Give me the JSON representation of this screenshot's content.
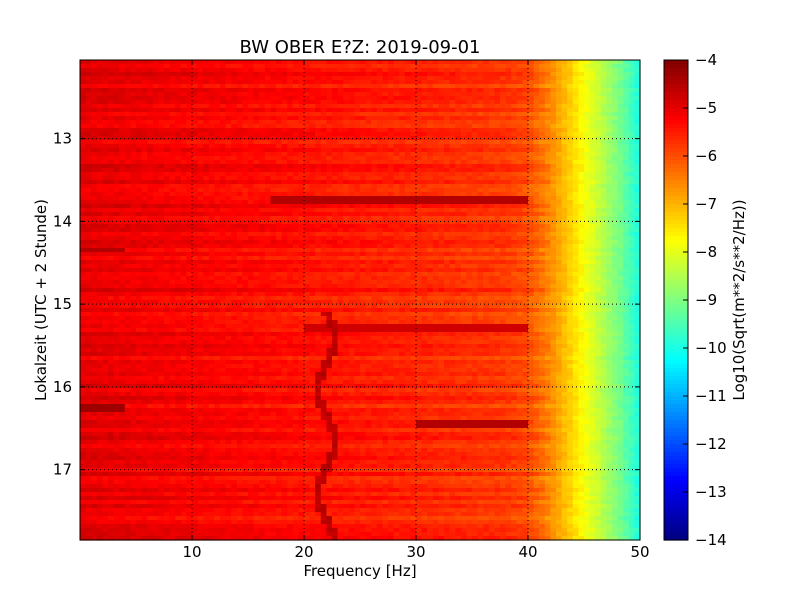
{
  "chart_data": {
    "type": "heatmap",
    "title": "BW OBER E?Z: 2019-09-01",
    "xlabel": "Frequency [Hz]",
    "ylabel": "Lokalzeit (UTC + 2 Stunde)",
    "colorbar_label": "Log10(Sqrt(m**2/s**2/Hz))",
    "colormap": "jet",
    "xlim": [
      0,
      50
    ],
    "ylim": [
      17.85,
      12.05
    ],
    "clim": [
      -14,
      -4
    ],
    "x_ticks": [
      10,
      20,
      30,
      40,
      50
    ],
    "x_tick_labels": [
      "10",
      "20",
      "30",
      "40",
      "50"
    ],
    "y_ticks": [
      13,
      14,
      15,
      16,
      17
    ],
    "y_tick_labels": [
      "13",
      "14",
      "15",
      "16",
      "17"
    ],
    "colorbar_ticks": [
      -4,
      -5,
      -6,
      -7,
      -8,
      -9,
      -10,
      -11,
      -12,
      -13,
      -14
    ],
    "colorbar_tick_labels": [
      "−4",
      "−5",
      "−6",
      "−7",
      "−8",
      "−9",
      "−10",
      "−11",
      "−12",
      "−13",
      "−14"
    ],
    "grid": true,
    "frequency_profile": {
      "frequency_hz": [
        0,
        10,
        20,
        30,
        38,
        40,
        41,
        42,
        43,
        44,
        45,
        46,
        48,
        50
      ],
      "value": [
        -5.0,
        -5.2,
        -5.4,
        -5.6,
        -5.8,
        -6.0,
        -6.3,
        -6.6,
        -7.0,
        -7.4,
        -7.8,
        -8.2,
        -9.0,
        -10.0
      ]
    },
    "features": [
      {
        "type": "band",
        "time": 13.75,
        "freq_range": [
          17,
          40
        ],
        "value": -4.5
      },
      {
        "type": "band",
        "time": 16.24,
        "freq_range": [
          0,
          4
        ],
        "value": -4.3
      },
      {
        "type": "band",
        "time": 14.35,
        "freq_range": [
          0,
          4
        ],
        "value": -4.5
      },
      {
        "type": "band",
        "time": 16.45,
        "freq_range": [
          30,
          40
        ],
        "value": -4.5
      },
      {
        "type": "band",
        "time": 15.3,
        "freq_range": [
          20,
          40
        ],
        "value": -4.8
      },
      {
        "type": "line",
        "freq_hz": 22,
        "time_range": [
          15.1,
          17.85
        ],
        "value": -4.6
      }
    ]
  }
}
